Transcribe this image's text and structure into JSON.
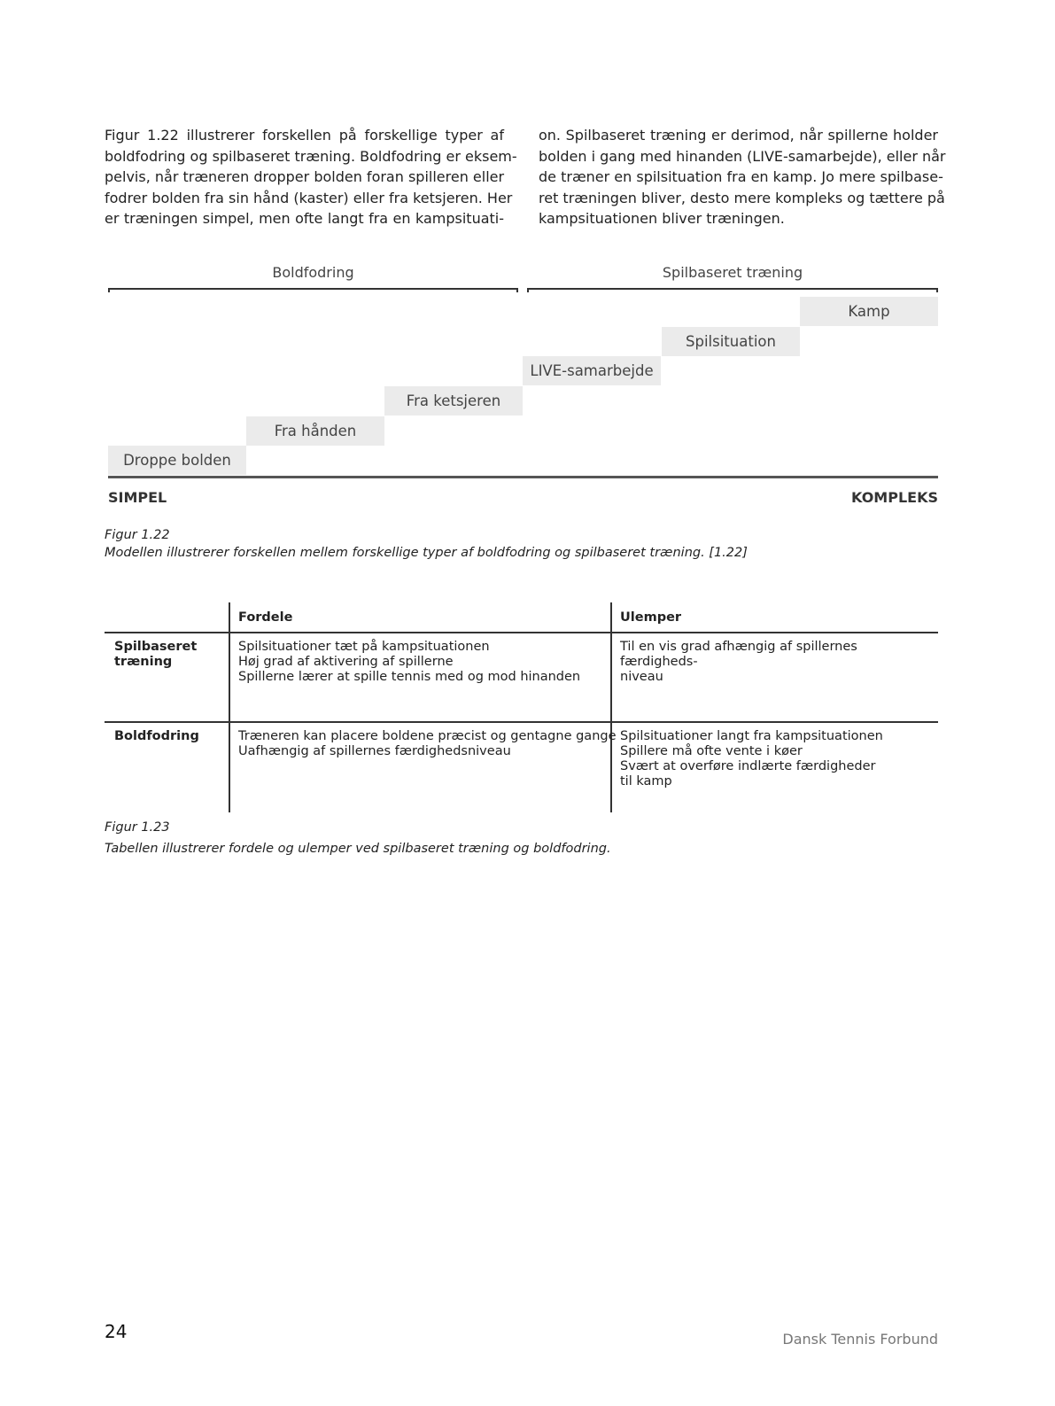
{
  "body_text": {
    "left_lines": [
      "Figur 1.22 illustrerer forskellen på forskellige typer af",
      "boldfodring og spilbaseret træning. Boldfodring er eksem-",
      "pelvis, når træneren dropper bolden foran spilleren eller",
      "fodrer bolden fra sin hånd (kaster) eller fra ketsjeren. Her",
      "er træningen simpel, men ofte langt fra en kampsituati-"
    ],
    "right_lines": [
      "on. Spilbaseret træning er derimod, når spillerne holder",
      "bolden i gang med hinanden (LIVE-samarbejde), eller når",
      "de træner en spilsituation fra en kamp. Jo mere spilbase-",
      "ret træningen bliver, desto mere kompleks og tættere på",
      "kampsituationen bliver træningen."
    ]
  },
  "diagram": {
    "groups": [
      "Boldfodring",
      "Spilbaseret træning"
    ],
    "steps": [
      "Droppe bolden",
      "Fra hånden",
      "Fra ketsjeren",
      "LIVE-samarbejde",
      "Spilsituation",
      "Kamp"
    ],
    "axis_left": "SIMPEL",
    "axis_right": "KOMPLEKS",
    "step_color": "#ebebeb"
  },
  "caption1": {
    "label": "Figur 1.22",
    "text": "Modellen illustrerer forskellen mellem forskellige typer af boldfodring og spilbaseret træning. [1.22]"
  },
  "table": {
    "headers": [
      "",
      "Fordele",
      "Ulemper"
    ],
    "rows": [
      {
        "label_lines": [
          "Spilbaseret",
          "træning"
        ],
        "pros": [
          "Spilsituationer tæt på kampsituationen",
          "Høj grad af aktivering af spillerne",
          "Spillerne lærer at spille tennis med og mod hinanden"
        ],
        "cons": [
          "Til en vis grad afhængig af spillernes færdigheds-",
          "niveau"
        ]
      },
      {
        "label_lines": [
          "Boldfodring"
        ],
        "pros": [
          "Træneren kan placere boldene præcist og gentagne gange",
          "Uafhængig af spillernes færdighedsniveau"
        ],
        "cons": [
          "Spilsituationer langt fra kampsituationen",
          "Spillere må ofte vente i køer",
          "Svært at overføre indlærte færdigheder",
          "til kamp"
        ]
      }
    ]
  },
  "caption2": {
    "label": "Figur 1.23",
    "text": "Tabellen illustrerer fordele og ulemper ved spilbaseret træning og boldfodring."
  },
  "footer": {
    "page_number": "24",
    "publisher": "Dansk Tennis Forbund"
  }
}
